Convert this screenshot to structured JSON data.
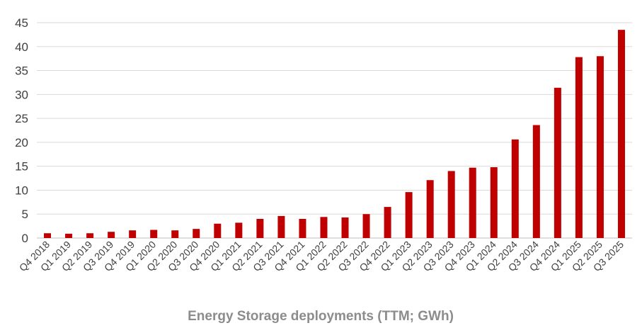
{
  "chart_data": {
    "type": "bar",
    "title": "Energy Storage deployments (TTM; GWh)",
    "xlabel": "",
    "ylabel": "",
    "ylim": [
      0,
      45
    ],
    "yticks": [
      "0",
      "5",
      "10",
      "15",
      "20",
      "25",
      "30",
      "35",
      "40",
      "45"
    ],
    "grid": true,
    "legend": "none",
    "bar_color": "#C00000",
    "categories": [
      "Q4 2018",
      "Q1 2019",
      "Q2 2019",
      "Q3 2019",
      "Q4 2019",
      "Q1 2020",
      "Q2 2020",
      "Q3 2020",
      "Q4 2020",
      "Q1 2021",
      "Q2 2021",
      "Q3 2021",
      "Q4 2021",
      "Q1 2022",
      "Q2 2022",
      "Q3 2022",
      "Q4 2022",
      "Q1 2023",
      "Q2 2023",
      "Q3 2023",
      "Q4 2023",
      "Q1 2024",
      "Q2 2024",
      "Q3 2024",
      "Q4 2024",
      "Q1 2025",
      "Q2 2025",
      "Q3 2025"
    ],
    "values": [
      1.0,
      0.9,
      1.0,
      1.3,
      1.6,
      1.7,
      1.6,
      1.9,
      3.0,
      3.2,
      4.0,
      4.6,
      4.0,
      4.4,
      4.3,
      5.0,
      6.5,
      9.6,
      12.1,
      14.0,
      14.7,
      14.8,
      20.6,
      23.6,
      31.4,
      37.8,
      38.0,
      43.5
    ]
  }
}
